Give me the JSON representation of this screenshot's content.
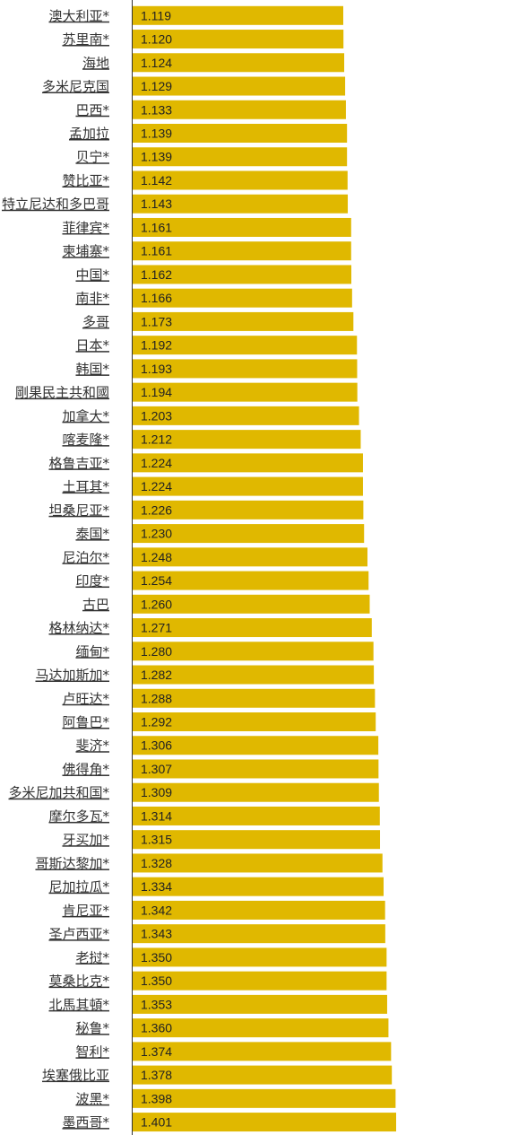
{
  "chart_data": {
    "type": "bar",
    "orientation": "horizontal",
    "bar_color": "#e0b800",
    "axis_color": "#333333",
    "label_color": "#333333",
    "categories": [
      "澳大利亚*",
      "苏里南*",
      "海地",
      "多米尼克国",
      "巴西*",
      "孟加拉",
      "贝宁*",
      "赞比亚*",
      "特立尼达和多巴哥",
      "菲律宾*",
      "柬埔寨*",
      "中国*",
      "南非*",
      "多哥",
      "日本*",
      "韩国*",
      "剛果民主共和國",
      "加拿大*",
      "喀麦隆*",
      "格鲁吉亚*",
      "土耳其*",
      "坦桑尼亚*",
      "泰国*",
      "尼泊尔*",
      "印度*",
      "古巴",
      "格林纳达*",
      "缅甸*",
      "马达加斯加*",
      "卢旺达*",
      "阿鲁巴*",
      "斐济*",
      "佛得角*",
      "多米尼加共和国*",
      "摩尔多瓦*",
      "牙买加*",
      "哥斯达黎加*",
      "尼加拉瓜*",
      "肯尼亚*",
      "圣卢西亚*",
      "老挝*",
      "莫桑比克*",
      "北馬其頓*",
      "秘鲁*",
      "智利*",
      "埃塞俄比亚",
      "波黑*",
      "墨西哥*"
    ],
    "values": [
      1.119,
      1.12,
      1.124,
      1.129,
      1.133,
      1.139,
      1.139,
      1.142,
      1.143,
      1.161,
      1.161,
      1.162,
      1.166,
      1.173,
      1.192,
      1.193,
      1.194,
      1.203,
      1.212,
      1.224,
      1.224,
      1.226,
      1.23,
      1.248,
      1.254,
      1.26,
      1.271,
      1.28,
      1.282,
      1.288,
      1.292,
      1.306,
      1.307,
      1.309,
      1.314,
      1.315,
      1.328,
      1.334,
      1.342,
      1.343,
      1.35,
      1.35,
      1.353,
      1.36,
      1.374,
      1.378,
      1.398,
      1.401
    ],
    "value_labels": [
      "1.119",
      "1.120",
      "1.124",
      "1.129",
      "1.133",
      "1.139",
      "1.139",
      "1.142",
      "1.143",
      "1.161",
      "1.161",
      "1.162",
      "1.166",
      "1.173",
      "1.192",
      "1.193",
      "1.194",
      "1.203",
      "1.212",
      "1.224",
      "1.224",
      "1.226",
      "1.230",
      "1.248",
      "1.254",
      "1.260",
      "1.271",
      "1.280",
      "1.282",
      "1.288",
      "1.292",
      "1.306",
      "1.307",
      "1.309",
      "1.314",
      "1.315",
      "1.328",
      "1.334",
      "1.342",
      "1.343",
      "1.350",
      "1.350",
      "1.353",
      "1.360",
      "1.374",
      "1.378",
      "1.398",
      "1.401"
    ],
    "title": "",
    "xlabel": "",
    "ylabel": "",
    "grid": false,
    "legend": "none"
  }
}
